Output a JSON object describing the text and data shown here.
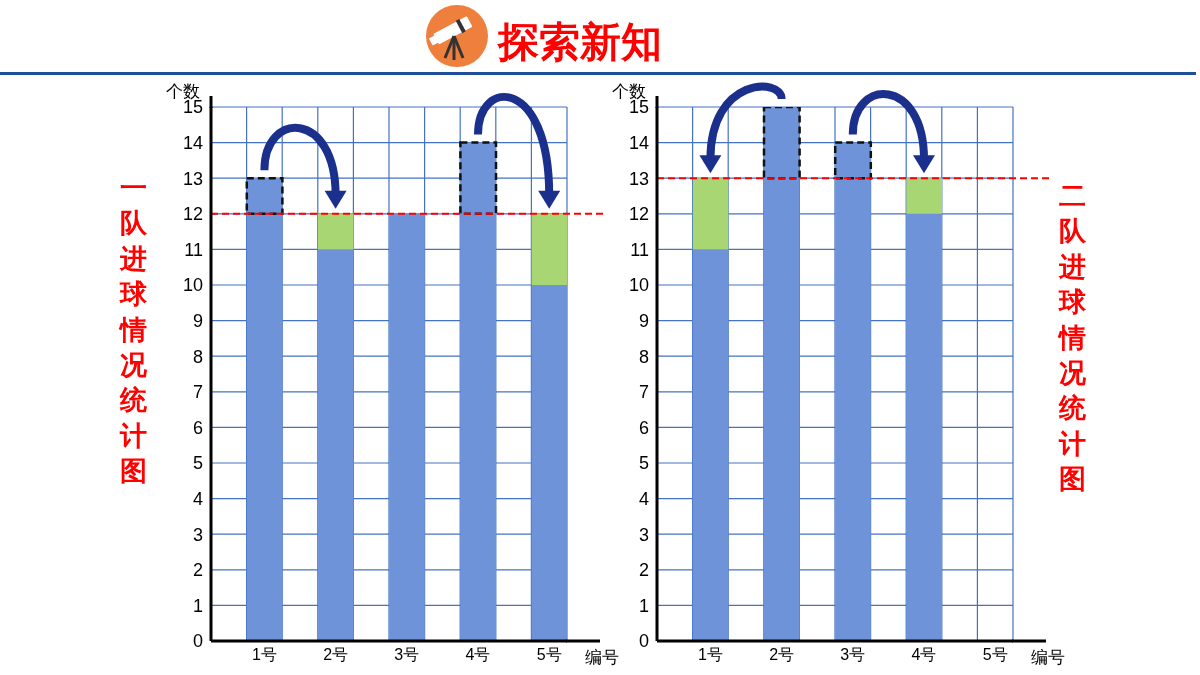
{
  "chart_data": [
    {
      "type": "bar",
      "title": "一队进球情况统计图",
      "annotations": [
        "探索新知"
      ],
      "xlabel": "编号",
      "ylabel": "个数",
      "categories": [
        "1号",
        "2号",
        "3号",
        "4号",
        "5号"
      ],
      "stacked": true,
      "series": [
        {
          "color": "#6e93d8",
          "values": [
            12,
            11,
            12,
            12,
            10
          ]
        },
        {
          "color": "#a8d672",
          "values": [
            null,
            1,
            null,
            null,
            2
          ]
        },
        {
          "color": "#6e93d8",
          "line_style": "dashed",
          "values": [
            1,
            null,
            null,
            2,
            null
          ]
        }
      ],
      "ylim": [
        0,
        15
      ],
      "yticks": [
        0,
        1,
        2,
        3,
        4,
        5,
        6,
        7,
        8,
        9,
        10,
        11,
        12,
        13,
        14,
        15
      ],
      "grid": true,
      "ref_lines": [
        {
          "axis": "y",
          "value": 12,
          "color": "#ff0000",
          "line_style": "dashed"
        }
      ]
    },
    {
      "type": "bar",
      "title": "二队进球情况统计图",
      "xlabel": "编号",
      "ylabel": "个数",
      "categories": [
        "1号",
        "2号",
        "3号",
        "4号",
        "5号"
      ],
      "stacked": true,
      "series": [
        {
          "color": "#6e93d8",
          "values": [
            11,
            13,
            13,
            12,
            null
          ]
        },
        {
          "color": "#a8d672",
          "values": [
            2,
            null,
            null,
            1,
            null
          ]
        },
        {
          "color": "#6e93d8",
          "line_style": "dashed",
          "values": [
            null,
            2,
            1,
            null,
            null
          ]
        }
      ],
      "ylim": [
        0,
        15
      ],
      "yticks": [
        0,
        1,
        2,
        3,
        4,
        5,
        6,
        7,
        8,
        9,
        10,
        11,
        12,
        13,
        14,
        15
      ],
      "grid": true,
      "ref_lines": [
        {
          "axis": "y",
          "value": 13,
          "color": "#ff0000",
          "line_style": "dashed"
        }
      ]
    }
  ]
}
